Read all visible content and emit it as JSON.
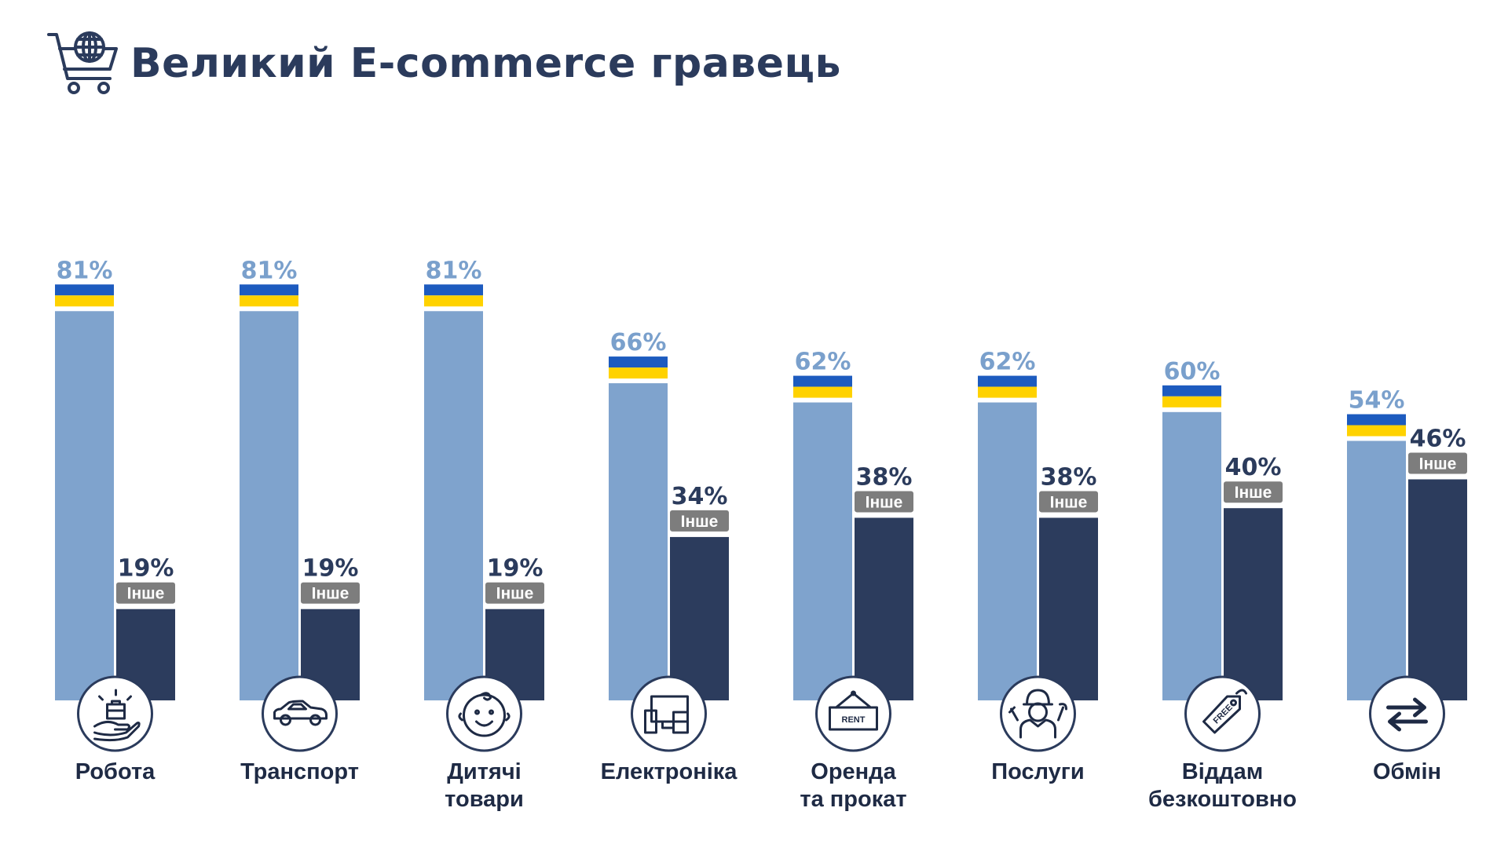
{
  "title": "Великий E-commerce гравець",
  "colors": {
    "ukraine_bar": "#7fa3cd",
    "other_bar": "#2c3c5d",
    "flag_blue": "#1d5bbf",
    "flag_yellow": "#ffd200",
    "tag_bg": "#7d7d7d",
    "title": "#2b3b5c"
  },
  "icons": {
    "header": "shopping-cart-globe-icon",
    "categories": [
      "hand-briefcase-icon",
      "car-icon",
      "baby-face-icon",
      "devices-icon",
      "rent-sign-icon",
      "worker-icon",
      "free-tag-icon",
      "exchange-arrows-icon"
    ]
  },
  "chart_data": {
    "type": "bar",
    "title": "Великий E-commerce гравець",
    "categories": [
      [
        "Робота"
      ],
      [
        "Транспорт"
      ],
      [
        "Дитячі",
        "товари"
      ],
      [
        "Електроніка"
      ],
      [
        "Оренда",
        "та прокат"
      ],
      [
        "Послуги"
      ],
      [
        "Віддам",
        "безкоштовно"
      ],
      [
        "Обмін"
      ]
    ],
    "ylim": [
      0,
      100
    ],
    "grid": false,
    "series": [
      {
        "values": [
          81,
          81,
          81,
          66,
          62,
          62,
          60,
          54
        ],
        "labels": [
          "81%",
          "81%",
          "81%",
          "66%",
          "62%",
          "62%",
          "60%",
          "54%"
        ]
      },
      {
        "name": "Інше",
        "values": [
          19,
          19,
          19,
          34,
          38,
          38,
          40,
          46
        ],
        "labels": [
          "19%",
          "19%",
          "19%",
          "34%",
          "38%",
          "38%",
          "40%",
          "46%"
        ]
      }
    ]
  }
}
